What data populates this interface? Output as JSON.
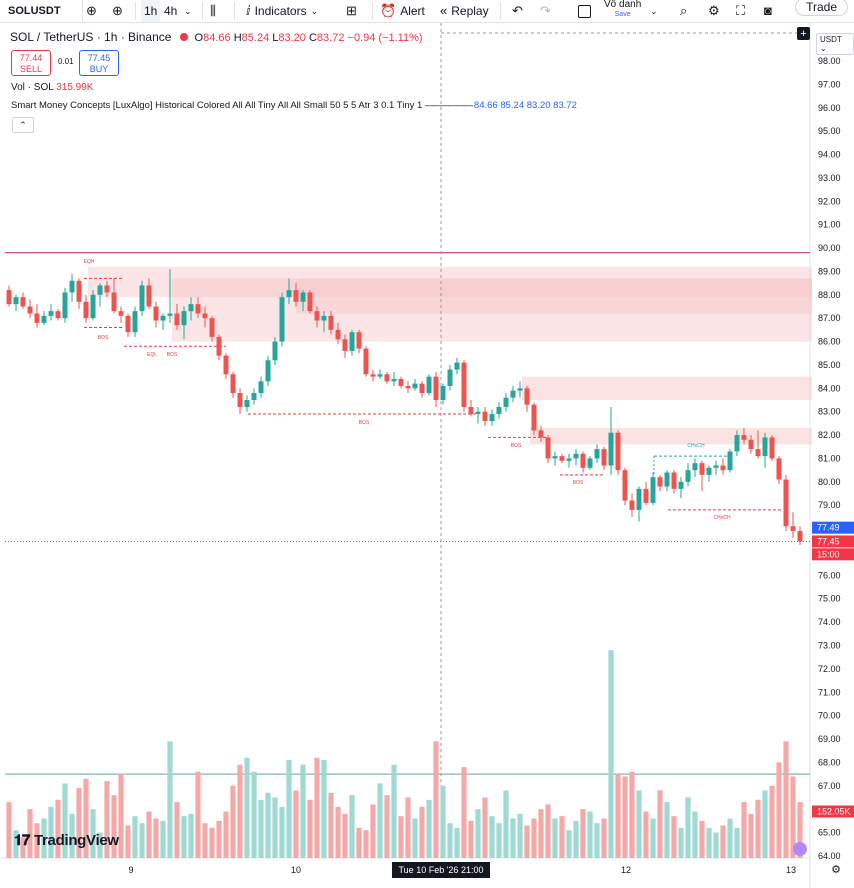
{
  "toolbar": {
    "symbol": "SOLUSDT",
    "intervals": [
      "1h",
      "4h"
    ],
    "indicators_label": "Indicators",
    "alert_label": "Alert",
    "replay_label": "Replay",
    "layout_name": "Vô danh",
    "save_label": "Save",
    "trade_label": "Trade"
  },
  "legend": {
    "title": "SOL / TetherUS · 1h · Binance",
    "open_label": "O",
    "open": "84.66",
    "high_label": "H",
    "high": "85.24",
    "low_label": "L",
    "low": "83.20",
    "close_label": "C",
    "close": "83.72",
    "change": "−0.94 (−1.11%)",
    "sell_price": "77.44",
    "sell_label": "SELL",
    "spread": "0.01",
    "buy_price": "77.45",
    "buy_label": "BUY",
    "volume_label": "Vol · SOL",
    "volume_value": "315.99K",
    "indicator_name": "Smart Money Concepts [LuxAlgo] Historical Colored All All Tiny All All Small 50 5 5 Atr 3 0.1 Tiny 1",
    "indicator_values": [
      "84.66",
      "85.24",
      "83.20",
      "83.72"
    ]
  },
  "price_axis": {
    "currency": "USDT",
    "ticks": [
      "98.00",
      "97.00",
      "96.00",
      "95.00",
      "94.00",
      "93.00",
      "92.00",
      "91.00",
      "90.00",
      "89.00",
      "88.00",
      "87.00",
      "86.00",
      "85.00",
      "84.00",
      "83.00",
      "82.00",
      "81.00",
      "80.00",
      "79.00",
      "78.00",
      "77.00",
      "76.00",
      "75.00",
      "74.00",
      "73.00",
      "72.00",
      "71.00",
      "70.00",
      "69.00",
      "68.00",
      "67.00",
      "66.00",
      "65.00",
      "64.00"
    ],
    "tag_last": "77.49",
    "tag_price": "77.45",
    "tag_countdown": "15:00",
    "tag_volume": "152.05K"
  },
  "time_axis": {
    "labels": [
      "9",
      "10",
      "12",
      "13"
    ],
    "crosshair_label": "Tue 10 Feb '26   21:00"
  },
  "smc_labels": [
    "EQH",
    "BOS",
    "EQL",
    "BOS",
    "BOS",
    "BOS",
    "BOS",
    "CHoCH",
    "CHoCH"
  ],
  "logo_text": "TradingView",
  "colors": {
    "up": "#26a69a",
    "down": "#ef5350",
    "vol_up": "#9fd9d3",
    "vol_down": "#f4a9a8",
    "zone": "#f7c5c8",
    "accent": "#2962ff"
  },
  "chart_data": {
    "type": "candlestick",
    "y_axis_range": [
      64,
      98
    ],
    "candles": [
      [
        88.2,
        88.4,
        87.5,
        87.6
      ],
      [
        87.6,
        88.0,
        87.3,
        87.9
      ],
      [
        87.9,
        88.1,
        87.4,
        87.5
      ],
      [
        87.5,
        87.8,
        87.0,
        87.2
      ],
      [
        87.2,
        87.6,
        86.6,
        86.8
      ],
      [
        86.8,
        87.3,
        86.7,
        87.1
      ],
      [
        87.1,
        87.6,
        86.9,
        87.3
      ],
      [
        87.3,
        87.4,
        86.9,
        87.0
      ],
      [
        87.0,
        88.3,
        86.8,
        88.1
      ],
      [
        88.1,
        88.9,
        87.7,
        88.6
      ],
      [
        88.6,
        88.7,
        87.4,
        87.7
      ],
      [
        87.7,
        88.0,
        86.8,
        87.0
      ],
      [
        87.0,
        88.2,
        86.9,
        88.0
      ],
      [
        88.0,
        88.5,
        87.5,
        88.4
      ],
      [
        88.4,
        88.6,
        87.9,
        88.1
      ],
      [
        88.1,
        88.7,
        87.2,
        87.3
      ],
      [
        87.3,
        87.5,
        86.8,
        87.1
      ],
      [
        87.1,
        87.2,
        86.2,
        86.4
      ],
      [
        86.4,
        87.5,
        86.2,
        87.3
      ],
      [
        87.3,
        88.6,
        87.1,
        88.4
      ],
      [
        88.4,
        88.7,
        87.4,
        87.5
      ],
      [
        87.5,
        87.7,
        86.6,
        86.9
      ],
      [
        86.9,
        87.2,
        86.5,
        87.1
      ],
      [
        87.1,
        89.1,
        86.8,
        87.2
      ],
      [
        87.2,
        87.6,
        86.5,
        86.7
      ],
      [
        86.7,
        87.5,
        86.1,
        87.3
      ],
      [
        87.3,
        87.9,
        86.9,
        87.6
      ],
      [
        87.6,
        87.9,
        87.0,
        87.2
      ],
      [
        87.2,
        87.5,
        86.6,
        87.0
      ],
      [
        87.0,
        87.1,
        86.0,
        86.2
      ],
      [
        86.2,
        86.3,
        85.2,
        85.4
      ],
      [
        85.4,
        85.5,
        84.4,
        84.6
      ],
      [
        84.6,
        84.7,
        83.6,
        83.8
      ],
      [
        83.8,
        84.0,
        82.9,
        83.2
      ],
      [
        83.2,
        83.7,
        83.0,
        83.5
      ],
      [
        83.5,
        84.0,
        83.3,
        83.8
      ],
      [
        83.8,
        84.5,
        83.6,
        84.3
      ],
      [
        84.3,
        85.4,
        84.1,
        85.2
      ],
      [
        85.2,
        86.2,
        85.0,
        86.0
      ],
      [
        86.0,
        88.1,
        85.8,
        87.9
      ],
      [
        87.9,
        88.7,
        87.6,
        88.2
      ],
      [
        88.2,
        88.5,
        87.5,
        87.7
      ],
      [
        87.7,
        88.2,
        87.3,
        88.1
      ],
      [
        88.1,
        88.2,
        87.2,
        87.3
      ],
      [
        87.3,
        87.5,
        86.6,
        86.9
      ],
      [
        86.9,
        87.3,
        86.4,
        87.1
      ],
      [
        87.1,
        87.3,
        86.3,
        86.5
      ],
      [
        86.5,
        86.8,
        85.9,
        86.1
      ],
      [
        86.1,
        86.3,
        85.3,
        85.6
      ],
      [
        85.6,
        86.5,
        85.4,
        86.4
      ],
      [
        86.4,
        86.5,
        85.5,
        85.7
      ],
      [
        85.7,
        85.8,
        84.5,
        84.6
      ],
      [
        84.6,
        84.8,
        84.3,
        84.5
      ],
      [
        84.5,
        84.8,
        84.4,
        84.6
      ],
      [
        84.6,
        84.7,
        84.2,
        84.3
      ],
      [
        84.3,
        84.7,
        84.1,
        84.4
      ],
      [
        84.4,
        84.5,
        84.0,
        84.1
      ],
      [
        84.1,
        84.3,
        83.8,
        84.0
      ],
      [
        84.0,
        84.4,
        83.9,
        84.2
      ],
      [
        84.2,
        84.3,
        83.6,
        83.8
      ],
      [
        83.8,
        84.6,
        83.7,
        84.5
      ],
      [
        84.5,
        84.7,
        83.2,
        83.5
      ],
      [
        83.5,
        84.2,
        83.3,
        84.1
      ],
      [
        84.1,
        85.0,
        83.9,
        84.8
      ],
      [
        84.8,
        85.3,
        84.6,
        85.1
      ],
      [
        85.1,
        85.2,
        83.0,
        83.2
      ],
      [
        83.2,
        83.5,
        82.8,
        82.9
      ],
      [
        82.9,
        83.2,
        82.5,
        83.0
      ],
      [
        83.0,
        83.2,
        82.4,
        82.6
      ],
      [
        82.6,
        83.1,
        82.4,
        82.9
      ],
      [
        82.9,
        83.4,
        82.7,
        83.2
      ],
      [
        83.2,
        83.8,
        83.0,
        83.6
      ],
      [
        83.6,
        84.1,
        83.4,
        83.9
      ],
      [
        83.9,
        84.3,
        83.6,
        84.0
      ],
      [
        84.0,
        84.1,
        83.0,
        83.3
      ],
      [
        83.3,
        83.4,
        82.0,
        82.2
      ],
      [
        82.2,
        82.4,
        81.7,
        81.9
      ],
      [
        81.9,
        82.0,
        80.8,
        81.0
      ],
      [
        81.0,
        81.3,
        80.7,
        81.1
      ],
      [
        81.1,
        81.2,
        80.8,
        80.9
      ],
      [
        80.9,
        81.2,
        80.6,
        81.0
      ],
      [
        81.0,
        81.4,
        80.7,
        81.2
      ],
      [
        81.2,
        81.3,
        80.4,
        80.6
      ],
      [
        80.6,
        81.1,
        80.5,
        81.0
      ],
      [
        81.0,
        81.6,
        80.8,
        81.4
      ],
      [
        81.4,
        81.5,
        80.5,
        80.7
      ],
      [
        80.7,
        83.2,
        80.3,
        82.1
      ],
      [
        82.1,
        82.2,
        80.3,
        80.5
      ],
      [
        80.5,
        80.6,
        79.0,
        79.2
      ],
      [
        79.2,
        79.5,
        78.5,
        78.8
      ],
      [
        78.8,
        79.8,
        78.3,
        79.7
      ],
      [
        79.7,
        80.0,
        79.0,
        79.1
      ],
      [
        79.1,
        80.4,
        79.0,
        80.2
      ],
      [
        80.2,
        80.3,
        79.6,
        79.8
      ],
      [
        79.8,
        80.5,
        79.6,
        80.4
      ],
      [
        80.4,
        80.5,
        79.5,
        79.7
      ],
      [
        79.7,
        80.2,
        79.3,
        80.0
      ],
      [
        80.0,
        80.8,
        79.8,
        80.5
      ],
      [
        80.5,
        81.0,
        80.2,
        80.8
      ],
      [
        80.8,
        80.9,
        79.6,
        80.3
      ],
      [
        80.3,
        80.7,
        80.0,
        80.6
      ],
      [
        80.6,
        80.9,
        80.3,
        80.7
      ],
      [
        80.7,
        81.0,
        80.3,
        80.5
      ],
      [
        80.5,
        81.4,
        80.4,
        81.3
      ],
      [
        81.3,
        82.2,
        81.1,
        82.0
      ],
      [
        82.0,
        82.3,
        81.6,
        81.8
      ],
      [
        81.8,
        82.0,
        81.2,
        81.4
      ],
      [
        81.4,
        82.2,
        81.0,
        81.1
      ],
      [
        81.1,
        82.1,
        80.6,
        81.9
      ],
      [
        81.9,
        82.0,
        80.9,
        81.0
      ],
      [
        81.0,
        81.1,
        79.9,
        80.1
      ],
      [
        80.1,
        80.3,
        77.9,
        78.1
      ],
      [
        78.1,
        78.7,
        77.6,
        77.9
      ],
      [
        77.9,
        78.1,
        77.3,
        77.45
      ]
    ],
    "volumes": [
      66.3,
      65.1,
      64.8,
      66.0,
      65.4,
      65.6,
      66.1,
      66.4,
      67.1,
      65.8,
      66.9,
      67.3,
      66.0,
      65.0,
      67.2,
      66.6,
      67.5,
      65.3,
      65.7,
      65.4,
      65.9,
      65.6,
      65.5,
      68.9,
      66.3,
      65.7,
      65.8,
      67.6,
      65.4,
      65.2,
      65.5,
      65.9,
      67.0,
      67.9,
      68.2,
      67.6,
      66.4,
      66.7,
      66.5,
      66.1,
      68.1,
      66.8,
      67.9,
      66.4,
      68.2,
      68.1,
      66.7,
      66.1,
      65.8,
      66.6,
      65.2,
      65.1,
      66.2,
      67.1,
      66.6,
      67.9,
      65.7,
      66.5,
      65.6,
      66.1,
      66.4,
      68.9,
      67.0,
      65.4,
      65.2,
      67.8,
      65.5,
      66.0,
      66.5,
      65.7,
      65.4,
      66.8,
      65.6,
      65.8,
      65.3,
      65.6,
      66.0,
      66.2,
      65.6,
      65.7,
      65.1,
      65.5,
      66.0,
      65.9,
      65.4,
      65.6,
      72.8,
      67.5,
      67.4,
      67.6,
      66.8,
      65.9,
      65.6,
      66.8,
      66.3,
      65.7,
      65.2,
      66.5,
      65.9,
      65.5,
      65.2,
      65.0,
      65.3,
      65.6,
      65.2,
      66.3,
      65.8,
      66.4,
      66.8,
      67.0,
      68.0,
      68.9,
      67.4,
      66.3
    ],
    "zones": [
      [
        87.9,
        89.2
      ],
      [
        86.0,
        88.7
      ],
      [
        87.2,
        88.7
      ],
      [
        83.5,
        84.5
      ],
      [
        81.6,
        82.3
      ]
    ],
    "levels": [
      89.8,
      67.5
    ]
  }
}
